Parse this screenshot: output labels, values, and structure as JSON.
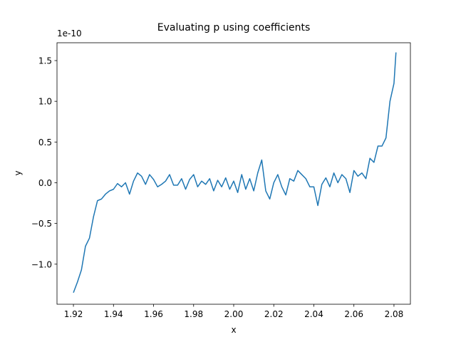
{
  "chart_data": {
    "type": "line",
    "title": "Evaluating p using coefficients",
    "x_label": "x",
    "y_label": "y",
    "y_offset_label": "1e-10",
    "x": [
      1.92,
      1.922,
      1.924,
      1.926,
      1.928,
      1.93,
      1.932,
      1.934,
      1.936,
      1.938,
      1.94,
      1.942,
      1.944,
      1.946,
      1.948,
      1.95,
      1.952,
      1.954,
      1.956,
      1.958,
      1.96,
      1.962,
      1.964,
      1.966,
      1.968,
      1.97,
      1.972,
      1.974,
      1.976,
      1.978,
      1.98,
      1.982,
      1.984,
      1.986,
      1.988,
      1.99,
      1.992,
      1.994,
      1.996,
      1.998,
      2.0,
      2.002,
      2.004,
      2.006,
      2.008,
      2.01,
      2.012,
      2.014,
      2.016,
      2.018,
      2.02,
      2.022,
      2.024,
      2.026,
      2.028,
      2.03,
      2.032,
      2.034,
      2.036,
      2.038,
      2.04,
      2.042,
      2.044,
      2.046,
      2.048,
      2.05,
      2.052,
      2.054,
      2.056,
      2.058,
      2.06,
      2.062,
      2.064,
      2.066,
      2.068,
      2.07,
      2.072,
      2.074,
      2.076,
      2.078,
      2.08,
      2.081
    ],
    "series": [
      {
        "color": "#1f77b4",
        "values": [
          -1.35,
          -1.22,
          -1.07,
          -0.78,
          -0.68,
          -0.42,
          -0.22,
          -0.2,
          -0.14,
          -0.1,
          -0.08,
          -0.01,
          -0.05,
          0.0,
          -0.14,
          0.02,
          0.12,
          0.08,
          -0.02,
          0.1,
          0.04,
          -0.05,
          -0.02,
          0.02,
          0.1,
          -0.03,
          -0.03,
          0.05,
          -0.08,
          0.04,
          0.1,
          -0.05,
          0.02,
          -0.02,
          0.05,
          -0.1,
          0.03,
          -0.05,
          0.06,
          -0.08,
          0.02,
          -0.12,
          0.1,
          -0.08,
          0.05,
          -0.1,
          0.12,
          0.28,
          -0.1,
          -0.2,
          0.0,
          0.1,
          -0.05,
          -0.15,
          0.05,
          0.02,
          0.15,
          0.1,
          0.05,
          -0.05,
          -0.05,
          -0.28,
          -0.02,
          0.06,
          -0.05,
          0.12,
          0.0,
          0.1,
          0.05,
          -0.12,
          0.15,
          0.08,
          0.12,
          0.05,
          0.3,
          0.25,
          0.45,
          0.45,
          0.55,
          1.0,
          1.22,
          1.6
        ]
      }
    ],
    "xlim": [
      1.9118,
      2.0882
    ],
    "ylim": [
      -1.492,
      1.719
    ],
    "xticks": [
      1.92,
      1.94,
      1.96,
      1.98,
      {
        "value": 2.0,
        "label": "2.00"
      },
      2.02,
      2.04,
      2.06,
      2.08
    ],
    "yticks": [
      {
        "value": -1.0,
        "label": "−1.0"
      },
      {
        "value": -0.5,
        "label": "−0.5"
      },
      {
        "value": 0.0,
        "label": "0.0"
      },
      {
        "value": 0.5,
        "label": "0.5"
      },
      {
        "value": 1.0,
        "label": "1.0"
      },
      {
        "value": 1.5,
        "label": "1.5"
      }
    ]
  }
}
